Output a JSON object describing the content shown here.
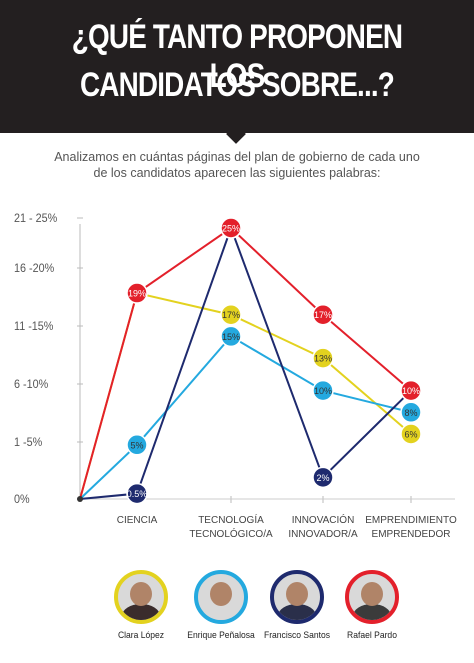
{
  "title": {
    "line1": "¿QUÉ TANTO PROPONEN LOS",
    "line2": "CANDIDATOS SOBRE...?"
  },
  "subtitle": {
    "line1": "Analizamos en cuántas páginas del plan de gobierno de cada uno",
    "line2": "de los candidatos aparecen las siguientes palabras:"
  },
  "chart_data": {
    "type": "line",
    "y_tick_labels": [
      "0%",
      "1 -5%",
      "6 -10%",
      "11 -15%",
      "16 -20%",
      "21 - 25%"
    ],
    "categories": [
      {
        "line1": "CIENCIA",
        "line2": ""
      },
      {
        "line1": "TECNOLOGÍA",
        "line2": "TECNOLÓGICO/A"
      },
      {
        "line1": "INNOVACIÓN",
        "line2": "INNOVADOR/A"
      },
      {
        "line1": "EMPRENDIMIENTO",
        "line2": "EMPRENDEDOR"
      }
    ],
    "ylim": [
      0,
      25
    ],
    "series": [
      {
        "name": "Clara López",
        "color": "#e3d21f",
        "values": [
          19,
          17,
          13,
          6
        ],
        "labels": [
          "19%",
          "17%",
          "13%",
          "6%"
        ]
      },
      {
        "name": "Enrique Peñalosa",
        "color": "#24a9df",
        "values": [
          5,
          15,
          10,
          8
        ],
        "labels": [
          "5%",
          "15%",
          "10%",
          "8%"
        ]
      },
      {
        "name": "Francisco Santos",
        "color": "#1e2a6e",
        "values": [
          0.5,
          25,
          2,
          10
        ],
        "labels": [
          "0.5%",
          "25%",
          "2%",
          "10%"
        ]
      },
      {
        "name": "Rafael Pardo",
        "color": "#e3202b",
        "values": [
          19,
          25,
          17,
          10
        ],
        "labels": [
          "19%",
          "25%",
          "17%",
          "10%"
        ]
      }
    ],
    "grid": false
  },
  "candidates": [
    {
      "name": "Clara López",
      "ring_color": "#e3d21f",
      "shirt": "#3a2c2c"
    },
    {
      "name": "Enrique Peñalosa",
      "ring_color": "#24a9df",
      "shirt": "#d9d9d9"
    },
    {
      "name": "Francisco Santos",
      "ring_color": "#1e2a6e",
      "shirt": "#2a2f4a"
    },
    {
      "name": "Rafael Pardo",
      "ring_color": "#e3202b",
      "shirt": "#3b3b3b"
    }
  ]
}
